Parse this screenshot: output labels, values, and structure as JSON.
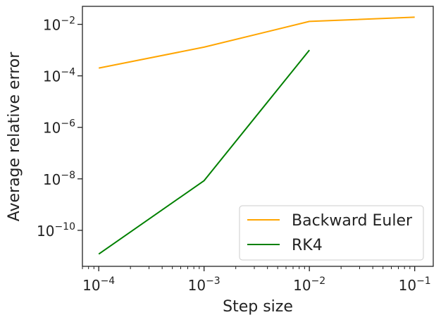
{
  "chart_data": {
    "type": "line",
    "x_scale": "log",
    "y_scale": "log",
    "xlabel": "Step size",
    "ylabel": "Average relative error",
    "xlim": [
      7e-05,
      0.15
    ],
    "ylim": [
      4e-12,
      0.05
    ],
    "x_ticks": [
      {
        "value": 0.0001,
        "base": "10",
        "exp": "−4"
      },
      {
        "value": 0.001,
        "base": "10",
        "exp": "−3"
      },
      {
        "value": 0.01,
        "base": "10",
        "exp": "−2"
      },
      {
        "value": 0.1,
        "base": "10",
        "exp": "−1"
      }
    ],
    "y_ticks": [
      {
        "value": 1e-10,
        "base": "10",
        "exp": "−10"
      },
      {
        "value": 1e-08,
        "base": "10",
        "exp": "−8"
      },
      {
        "value": 1e-06,
        "base": "10",
        "exp": "−6"
      },
      {
        "value": 0.0001,
        "base": "10",
        "exp": "−4"
      },
      {
        "value": 0.01,
        "base": "10",
        "exp": "−2"
      }
    ],
    "legend_position": "lower-right",
    "grid": false,
    "series": [
      {
        "name": "Backward Euler",
        "color": "#FFA500",
        "x": [
          0.0001,
          0.001,
          0.01,
          0.1
        ],
        "y": [
          0.0002,
          0.0013,
          0.013,
          0.019
        ]
      },
      {
        "name": "RK4",
        "color": "#008000",
        "x": [
          0.0001,
          0.001,
          0.01
        ],
        "y": [
          1.2e-11,
          8.5e-09,
          0.001
        ]
      }
    ]
  }
}
